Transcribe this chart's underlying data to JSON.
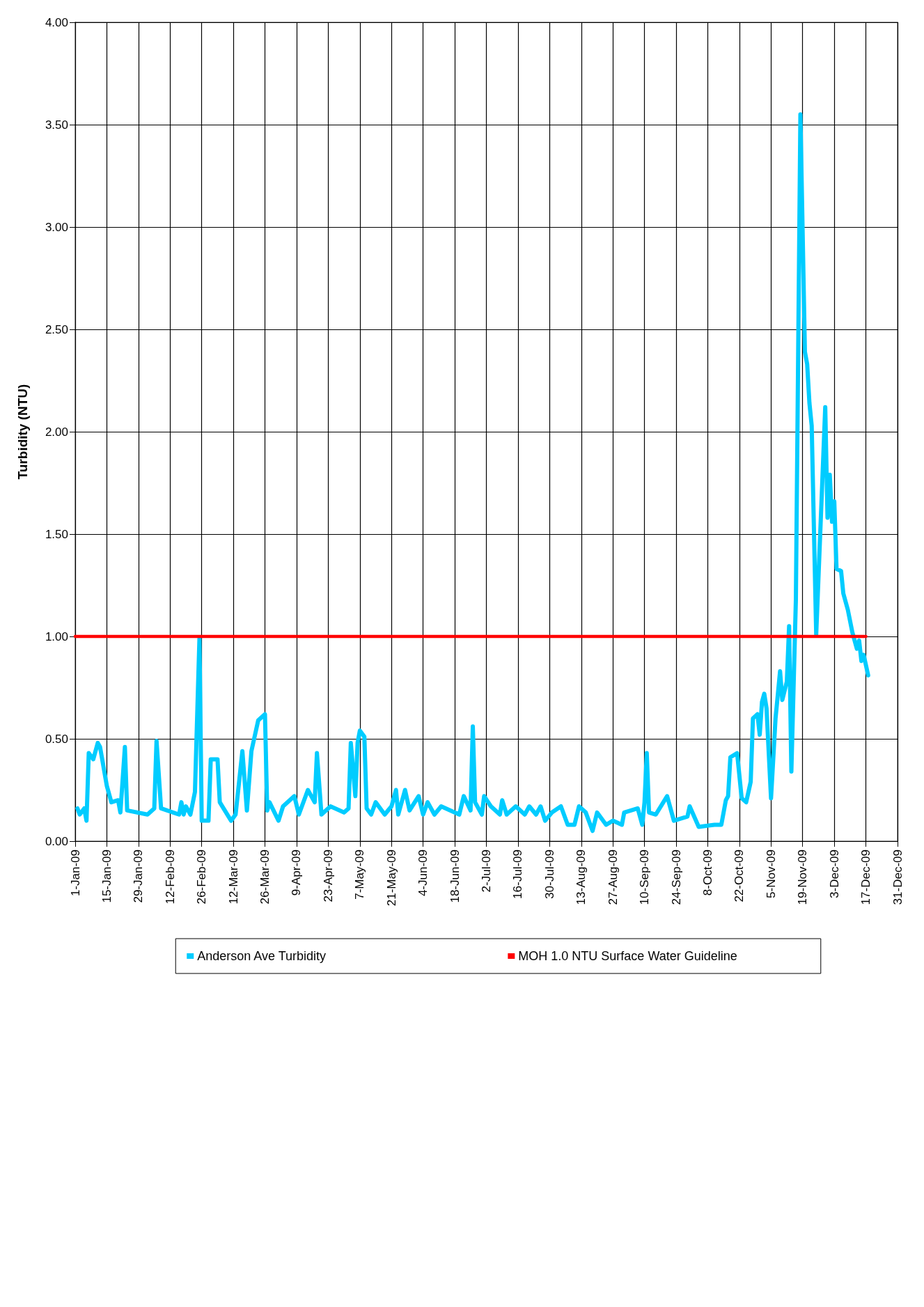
{
  "chart_data": {
    "type": "line",
    "ylabel": "Turbidity (NTU)",
    "legend": "bottom",
    "grid": true,
    "marker": "none",
    "line_style": "solid",
    "xlim": [
      "--01-01",
      "--12-31"
    ],
    "xticks": [
      {
        "value": "--01-01",
        "label": "1-Jan-09"
      },
      {
        "value": "--01-15",
        "label": "15-Jan-09"
      },
      {
        "value": "--01-29",
        "label": "29-Jan-09"
      },
      {
        "value": "--02-12",
        "label": "12-Feb-09"
      },
      {
        "value": "--02-26",
        "label": "26-Feb-09"
      },
      {
        "value": "--03-12",
        "label": "12-Mar-09"
      },
      {
        "value": "--03-26",
        "label": "26-Mar-09"
      },
      {
        "value": "--04-09",
        "label": "9-Apr-09"
      },
      {
        "value": "--04-23",
        "label": "23-Apr-09"
      },
      {
        "value": "--05-07",
        "label": "7-May-09"
      },
      {
        "value": "--05-21",
        "label": "21-May-09"
      },
      {
        "value": "--06-04",
        "label": "4-Jun-09"
      },
      {
        "value": "--06-18",
        "label": "18-Jun-09"
      },
      {
        "value": "--07-02",
        "label": "2-Jul-09"
      },
      {
        "value": "--07-16",
        "label": "16-Jul-09"
      },
      {
        "value": "--07-30",
        "label": "30-Jul-09"
      },
      {
        "value": "--08-13",
        "label": "13-Aug-09"
      },
      {
        "value": "--08-27",
        "label": "27-Aug-09"
      },
      {
        "value": "--09-10",
        "label": "10-Sep-09"
      },
      {
        "value": "--09-24",
        "label": "24-Sep-09"
      },
      {
        "value": "--10-08",
        "label": "8-Oct-09"
      },
      {
        "value": "--10-22",
        "label": "22-Oct-09"
      },
      {
        "value": "--11-05",
        "label": "5-Nov-09"
      },
      {
        "value": "--11-19",
        "label": "19-Nov-09"
      },
      {
        "value": "--12-03",
        "label": "3-Dec-09"
      },
      {
        "value": "--12-17",
        "label": "17-Dec-09"
      },
      {
        "value": "--12-31",
        "label": "31-Dec-09"
      }
    ],
    "ylim": [
      0,
      4
    ],
    "yticks": [
      {
        "value": 0,
        "label": "0.00"
      },
      {
        "value": 0.5,
        "label": "0.50"
      },
      {
        "value": 1,
        "label": "1.00"
      },
      {
        "value": 1.5,
        "label": "1.50"
      },
      {
        "value": 2,
        "label": "2.00"
      },
      {
        "value": 2.5,
        "label": "2.50"
      },
      {
        "value": 3,
        "label": "3.00"
      },
      {
        "value": 3.5,
        "label": "3.50"
      },
      {
        "value": 4,
        "label": "4.00"
      }
    ],
    "series": [
      {
        "name": "Anderson Ave Turbidity",
        "color": "#00ccff",
        "x": [
          "--01-02",
          "--01-03",
          "--01-05",
          "--01-06",
          "--01-07",
          "--01-09",
          "--01-11",
          "--01-12",
          "--01-15",
          "--01-17",
          "--01-20",
          "--01-21",
          "--01-23",
          "--01-24",
          "--02-02",
          "--02-05",
          "--02-06",
          "--02-08",
          "--02-16",
          "--02-17",
          "--02-18",
          "--02-19",
          "--02-21",
          "--02-23",
          "--02-25",
          "--02-26",
          "--03-01",
          "--03-02",
          "--03-05",
          "--03-06",
          "--03-11",
          "--03-13",
          "--03-16",
          "--03-18",
          "--03-20",
          "--03-23",
          "--03-26",
          "--03-27",
          "--03-28",
          "--04-01",
          "--04-03",
          "--04-08",
          "--04-10",
          "--04-14",
          "--04-17",
          "--04-18",
          "--04-20",
          "--04-24",
          "--04-30",
          "--05-02",
          "--05-03",
          "--05-05",
          "--05-06",
          "--05-07",
          "--05-09",
          "--05-10",
          "--05-12",
          "--05-14",
          "--05-18",
          "--05-21",
          "--05-23",
          "--05-24",
          "--05-27",
          "--05-29",
          "--06-02",
          "--06-04",
          "--06-06",
          "--06-09",
          "--06-12",
          "--06-20",
          "--06-22",
          "--06-25",
          "--06-26",
          "--06-27",
          "--06-30",
          "--07-01",
          "--07-04",
          "--07-08",
          "--07-09",
          "--07-11",
          "--07-15",
          "--07-19",
          "--07-21",
          "--07-24",
          "--07-26",
          "--07-28",
          "--07-31",
          "--08-04",
          "--08-07",
          "--08-10",
          "--08-12",
          "--08-15",
          "--08-18",
          "--08-20",
          "--08-24",
          "--08-27",
          "--08-31",
          "--09-01",
          "--09-07",
          "--09-09",
          "--09-10",
          "--09-11",
          "--09-12",
          "--09-15",
          "--09-20",
          "--09-23",
          "--09-29",
          "--09-30",
          "--10-04",
          "--10-11",
          "--10-14",
          "--10-16",
          "--10-17",
          "--10-18",
          "--10-21",
          "--10-23",
          "--10-25",
          "--10-27",
          "--10-28",
          "--10-30",
          "--10-31",
          "--11-01",
          "--11-02",
          "--11-03",
          "--11-05",
          "--11-07",
          "--11-09",
          "--11-10",
          "--11-12",
          "--11-13",
          "--11-14",
          "--11-16",
          "--11-18",
          "--11-20",
          "--11-21",
          "--11-22",
          "--11-23",
          "--11-25",
          "--11-29",
          "--11-30",
          "--12-01",
          "--12-02",
          "--12-03",
          "--12-04",
          "--12-06",
          "--12-07",
          "--12-09",
          "--12-11",
          "--12-13",
          "--12-14",
          "--12-15",
          "--12-16",
          "--12-18"
        ],
        "values": [
          0.16,
          0.13,
          0.16,
          0.1,
          0.43,
          0.4,
          0.48,
          0.46,
          0.27,
          0.19,
          0.2,
          0.14,
          0.46,
          0.15,
          0.13,
          0.16,
          0.49,
          0.16,
          0.13,
          0.19,
          0.13,
          0.17,
          0.13,
          0.24,
          0.99,
          0.1,
          0.1,
          0.4,
          0.4,
          0.19,
          0.1,
          0.13,
          0.44,
          0.15,
          0.44,
          0.59,
          0.62,
          0.15,
          0.19,
          0.1,
          0.17,
          0.22,
          0.13,
          0.25,
          0.19,
          0.43,
          0.13,
          0.17,
          0.14,
          0.16,
          0.48,
          0.22,
          0.48,
          0.54,
          0.51,
          0.16,
          0.13,
          0.19,
          0.13,
          0.17,
          0.25,
          0.13,
          0.25,
          0.15,
          0.22,
          0.13,
          0.19,
          0.13,
          0.17,
          0.13,
          0.22,
          0.15,
          0.56,
          0.19,
          0.13,
          0.22,
          0.17,
          0.13,
          0.2,
          0.13,
          0.17,
          0.13,
          0.17,
          0.13,
          0.17,
          0.1,
          0.14,
          0.17,
          0.08,
          0.08,
          0.17,
          0.14,
          0.05,
          0.14,
          0.08,
          0.1,
          0.08,
          0.14,
          0.16,
          0.08,
          0.19,
          0.43,
          0.14,
          0.13,
          0.22,
          0.1,
          0.12,
          0.17,
          0.07,
          0.08,
          0.08,
          0.2,
          0.22,
          0.41,
          0.43,
          0.21,
          0.19,
          0.29,
          0.6,
          0.62,
          0.52,
          0.68,
          0.72,
          0.65,
          0.21,
          0.6,
          0.83,
          0.69,
          0.78,
          1.05,
          0.34,
          1.18,
          3.55,
          2.39,
          2.33,
          2.14,
          2.03,
          1.01,
          2.12,
          1.58,
          1.79,
          1.56,
          1.66,
          1.33,
          1.32,
          1.21,
          1.13,
          1.02,
          0.94,
          0.98,
          0.88,
          0.91,
          0.81
        ]
      },
      {
        "name": "MOH 1.0 NTU Surface Water Guideline",
        "color": "#ff0000",
        "x": [
          "--01-01",
          "--12-17"
        ],
        "values": [
          1,
          1
        ]
      }
    ]
  }
}
